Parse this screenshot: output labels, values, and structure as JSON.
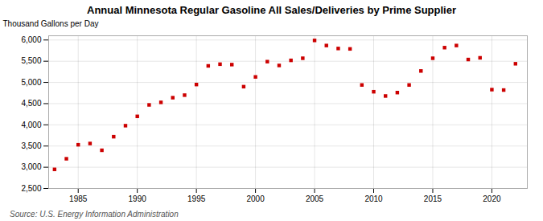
{
  "chart_data": {
    "type": "scatter",
    "title": "Annual Minnesota Regular Gasoline All Sales/Deliveries by Prime Supplier",
    "ylabel": "Thousand Gallons per Day",
    "caption": "Source: U.S. Energy Information Administration",
    "x": [
      1983,
      1984,
      1985,
      1986,
      1987,
      1988,
      1989,
      1990,
      1991,
      1992,
      1993,
      1994,
      1995,
      1996,
      1997,
      1998,
      1999,
      2000,
      2001,
      2002,
      2003,
      2004,
      2005,
      2006,
      2007,
      2008,
      2009,
      2010,
      2011,
      2012,
      2013,
      2014,
      2015,
      2016,
      2017,
      2018,
      2019,
      2020,
      2021,
      2022
    ],
    "values": [
      2950,
      3200,
      3530,
      3560,
      3400,
      3720,
      3980,
      4200,
      4470,
      4530,
      4640,
      4700,
      4950,
      5390,
      5430,
      5420,
      4900,
      5130,
      5490,
      5400,
      5520,
      5570,
      5990,
      5870,
      5800,
      5790,
      4940,
      4780,
      4680,
      4760,
      4940,
      5270,
      5570,
      5820,
      5870,
      5540,
      5580,
      4830,
      4820,
      5440
    ],
    "color": "#cc0000",
    "marker": "square",
    "xlim": [
      1982.5,
      2023
    ],
    "ylim": [
      2500,
      6100
    ],
    "xticks": [
      1985,
      1990,
      1995,
      2000,
      2005,
      2010,
      2015,
      2020
    ],
    "yticks": [
      {
        "value": 2500,
        "label": "2,500"
      },
      {
        "value": 3000,
        "label": "3,000"
      },
      {
        "value": 3500,
        "label": "3,500"
      },
      {
        "value": 4000,
        "label": "4,000"
      },
      {
        "value": 4500,
        "label": "4,500"
      },
      {
        "value": 5000,
        "label": "5,000"
      },
      {
        "value": 5500,
        "label": "5,500"
      },
      {
        "value": 6000,
        "label": "6,000"
      }
    ],
    "grid": true
  }
}
